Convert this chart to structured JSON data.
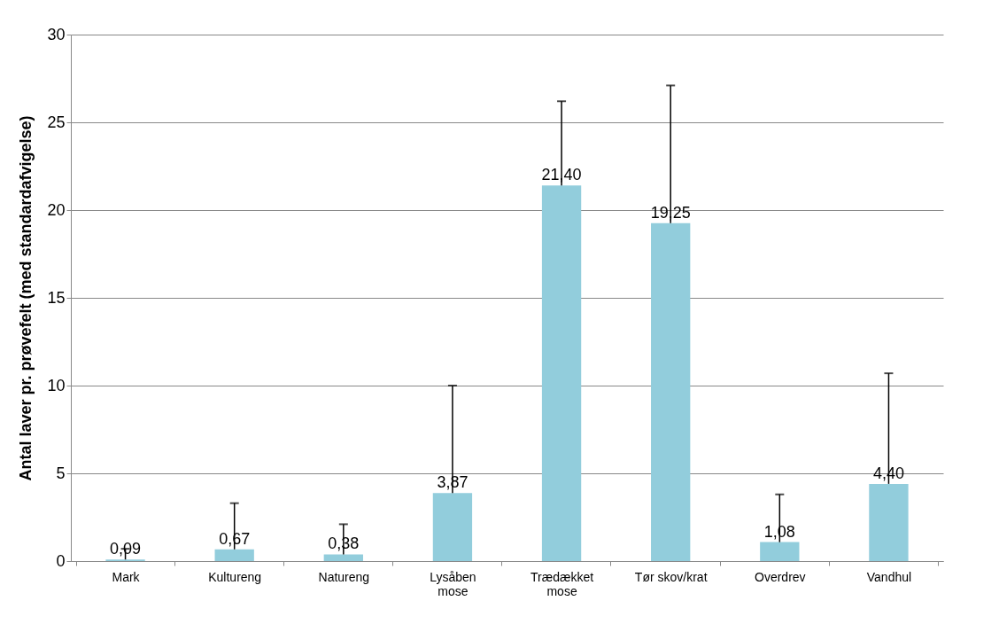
{
  "chart_data": {
    "type": "bar",
    "ylabel": "Antal laver pr. prøvefelt (med standardafvigelse)",
    "categories": [
      "Mark",
      "Kultureng",
      "Natureng",
      "Lysåben mose",
      "Trædækket mose",
      "Tør skov/krat",
      "Overdrev",
      "Vandhul"
    ],
    "values": [
      0.09,
      0.67,
      0.38,
      3.87,
      21.4,
      19.25,
      1.08,
      4.4
    ],
    "value_labels": [
      "0,09",
      "0,67",
      "0,38",
      "3,87",
      "21,40",
      "19,25",
      "1,08",
      "4,40"
    ],
    "errors": [
      [
        0.09,
        0.7
      ],
      [
        0.67,
        3.3
      ],
      [
        0.38,
        2.1
      ],
      [
        3.87,
        10
      ],
      [
        21.4,
        26.2
      ],
      [
        19.25,
        27.1
      ],
      [
        1.08,
        3.8
      ],
      [
        4.4,
        10.7
      ]
    ],
    "color": "#92cddc",
    "ylim": [
      0,
      30
    ],
    "yticks": [
      0,
      5,
      10,
      15,
      20,
      25,
      30
    ],
    "grid": "y"
  }
}
